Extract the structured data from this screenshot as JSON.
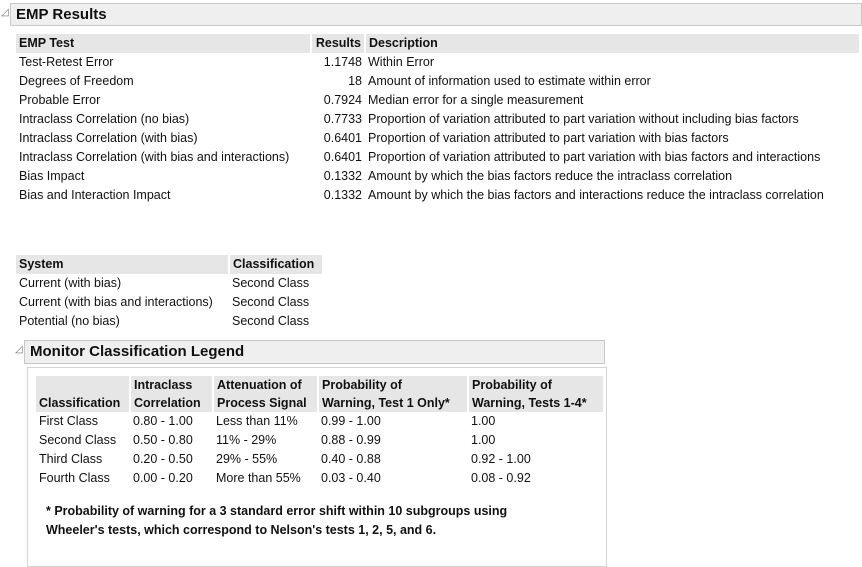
{
  "emp": {
    "title": "EMP Results",
    "columns": [
      "EMP Test",
      "Results",
      "Description"
    ],
    "rows": [
      [
        "Test-Retest Error",
        "1.1748",
        "Within Error"
      ],
      [
        "Degrees of Freedom",
        "18",
        "Amount of information used to estimate within error"
      ],
      [
        "Probable Error",
        "0.7924",
        "Median error for a single measurement"
      ],
      [
        "Intraclass Correlation (no bias)",
        "0.7733",
        "Proportion of variation attributed to part variation without including bias factors"
      ],
      [
        "Intraclass Correlation (with bias)",
        "0.6401",
        "Proportion of variation attributed to part variation with bias factors"
      ],
      [
        "Intraclass Correlation (with bias and interactions)",
        "0.6401",
        "Proportion of variation attributed to part variation with bias factors and interactions"
      ],
      [
        "Bias Impact",
        "0.1332",
        "Amount by which the bias factors reduce the intraclass correlation"
      ],
      [
        "Bias and Interaction Impact",
        "0.1332",
        "Amount by which the bias factors and interactions reduce the intraclass correlation"
      ]
    ]
  },
  "system": {
    "columns": [
      "System",
      "Classification"
    ],
    "rows": [
      [
        "Current (with bias)",
        "Second Class"
      ],
      [
        "Current (with bias and interactions)",
        "Second Class"
      ],
      [
        "Potential (no bias)",
        "Second Class"
      ]
    ]
  },
  "legend": {
    "title": "Monitor Classification Legend",
    "columns": [
      [
        "",
        "Classification"
      ],
      [
        "Intraclass",
        "Correlation"
      ],
      [
        "Attenuation of",
        "Process Signal"
      ],
      [
        "Probability of",
        "Warning, Test 1 Only*"
      ],
      [
        "Probability of",
        "Warning, Tests 1-4*"
      ]
    ],
    "rows": [
      [
        "First Class",
        "0.80 - 1.00",
        "Less than 11%",
        "0.99 - 1.00",
        "1.00"
      ],
      [
        "Second Class",
        "0.50 - 0.80",
        "11% - 29%",
        "0.88 - 0.99",
        "1.00"
      ],
      [
        "Third Class",
        "0.20 - 0.50",
        "29% - 55%",
        "0.40 - 0.88",
        "0.92 - 1.00"
      ],
      [
        "Fourth Class",
        "0.00 - 0.20",
        "More than 55%",
        "0.03 - 0.40",
        "0.08 - 0.92"
      ]
    ],
    "footnote": [
      "* Probability of warning for a 3 standard error shift within 10 subgroups using",
      "Wheeler's tests, which correspond to Nelson's tests 1, 2, 5, and 6."
    ]
  }
}
